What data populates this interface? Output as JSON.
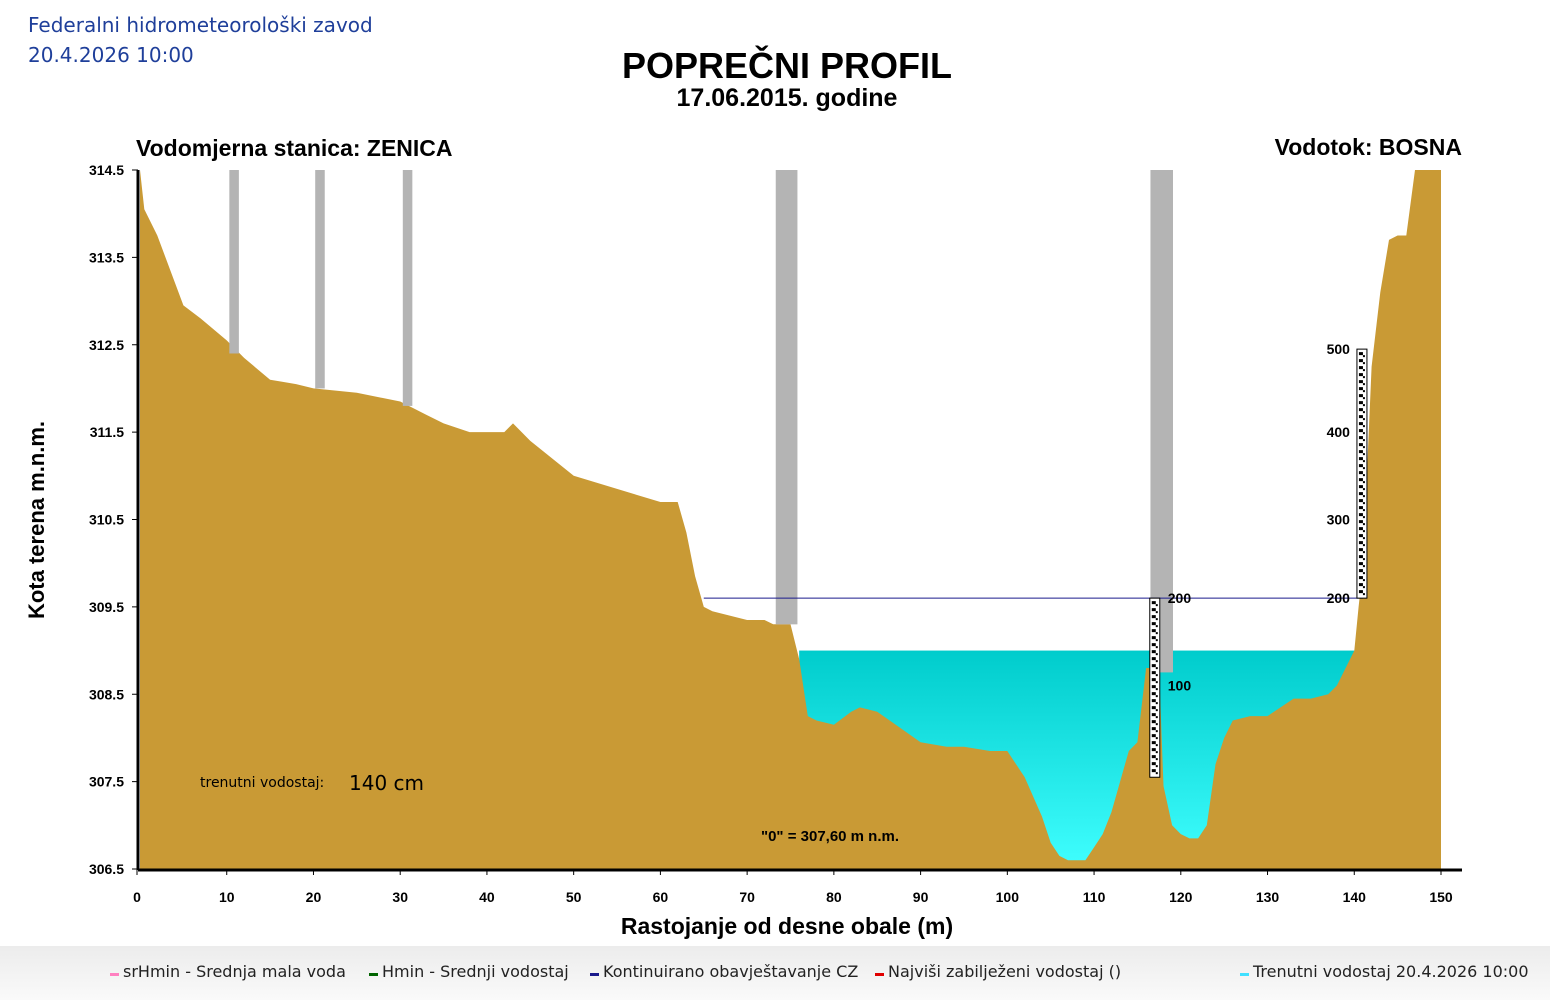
{
  "header": {
    "organization": "Federalni hidrometeorološki zavod",
    "datetime": "20.4.2026 10:00"
  },
  "chart_data": {
    "type": "area",
    "title": "POPREČNI PROFIL",
    "subtitle": "17.06.2015. godine",
    "station_label": "Vodomjerna stanica: ZENICA",
    "river_label": "Vodotok: BOSNA",
    "xlabel": "Rastojanje od desne obale (m)",
    "ylabel": "Kota terena m.n.m.",
    "xlim": [
      0,
      150
    ],
    "ylim": [
      306.5,
      314.5
    ],
    "x_ticks": [
      "0",
      "10",
      "20",
      "30",
      "40",
      "50",
      "60",
      "70",
      "80",
      "90",
      "100",
      "110",
      "120",
      "130",
      "140",
      "150"
    ],
    "y_ticks": [
      "306.5",
      "307.5",
      "308.5",
      "309.5",
      "310.5",
      "311.5",
      "312.5",
      "313.5",
      "314.5"
    ],
    "terrain": {
      "x": [
        0,
        0.5,
        2,
        5,
        7,
        10,
        12,
        15,
        18,
        20,
        25,
        30,
        33,
        35,
        38,
        40,
        42,
        43,
        45,
        50,
        55,
        60,
        62,
        63,
        64,
        65,
        66,
        70,
        72,
        73,
        75,
        76,
        77,
        78,
        80,
        82,
        83,
        85,
        90,
        93,
        95,
        98,
        100,
        102,
        104,
        105,
        106,
        107,
        108,
        109,
        110,
        111,
        112,
        114,
        115,
        116,
        116.5,
        117.5,
        118,
        119,
        120,
        121,
        122,
        123,
        124,
        125,
        126,
        128,
        130,
        133,
        135,
        137,
        138,
        140,
        140.5,
        141,
        142,
        143,
        144,
        145,
        146,
        147,
        148,
        149,
        150
      ],
      "y": [
        314.5,
        314.05,
        313.75,
        312.95,
        312.8,
        312.55,
        312.35,
        312.1,
        312.05,
        312.0,
        311.95,
        311.85,
        311.7,
        311.6,
        311.5,
        311.5,
        311.5,
        311.6,
        311.4,
        311.0,
        310.85,
        310.7,
        310.7,
        310.35,
        309.85,
        309.5,
        309.45,
        309.35,
        309.35,
        309.3,
        309.3,
        308.9,
        308.25,
        308.2,
        308.15,
        308.3,
        308.35,
        308.3,
        307.95,
        307.9,
        307.9,
        307.85,
        307.85,
        307.55,
        307.1,
        306.8,
        306.65,
        306.6,
        306.6,
        306.6,
        306.75,
        306.9,
        307.15,
        307.85,
        307.95,
        308.8,
        308.8,
        308.8,
        307.45,
        307.0,
        306.9,
        306.85,
        306.85,
        307.0,
        307.7,
        308.0,
        308.2,
        308.25,
        308.25,
        308.45,
        308.45,
        308.5,
        308.6,
        309.0,
        309.5,
        309.95,
        312.25,
        313.1,
        313.7,
        313.75,
        313.75,
        314.5,
        314.5,
        314.5,
        314.5
      ]
    },
    "water_level_m": 309.0,
    "hmin_line_m": 309.6,
    "zero_label": "\"0\" = 307,60 m n.m.",
    "current_level": {
      "label": "trenutni vodostaj:",
      "value": "140 cm"
    },
    "staff_gauges": [
      {
        "x": 117,
        "labels": [
          {
            "text": "200",
            "y": 309.6
          },
          {
            "text": "100",
            "y": 308.6
          }
        ]
      },
      {
        "x": 141,
        "labels": [
          {
            "text": "500",
            "y": 312.45
          },
          {
            "text": "400",
            "y": 311.5
          },
          {
            "text": "300",
            "y": 310.5
          },
          {
            "text": "200",
            "y": 309.6
          }
        ]
      }
    ],
    "bridge_pillars": [
      {
        "x1": 10.3,
        "x2": 11.4,
        "top": 314.5,
        "bottom": 312.4
      },
      {
        "x1": 20.2,
        "x2": 21.3,
        "top": 314.5,
        "bottom": 312.0
      },
      {
        "x1": 30.3,
        "x2": 31.4,
        "top": 314.5,
        "bottom": 311.8
      },
      {
        "x1": 73.3,
        "x2": 75.8,
        "top": 314.55,
        "bottom": 309.3
      },
      {
        "x1": 116.5,
        "x2": 119.1,
        "top": 314.55,
        "bottom": 308.75
      }
    ],
    "colors": {
      "terrain": "#c99a35",
      "water_top": "#00cccc",
      "water_bottom": "#40ffff",
      "pillar": "#b4b4b4",
      "hmin_line": "#1a1a8c"
    }
  },
  "legend": [
    {
      "label": "srHmin - Srednja mala voda",
      "color": "#ff80c0"
    },
    {
      "label": "Hmin - Srednji vodostaj",
      "color": "#006400"
    },
    {
      "label": "Kontinuirano obavještavanje CZ",
      "color": "#1a1a8c"
    },
    {
      "label": "Najviši zabilježeni vodostaj ()",
      "color": "#e00000"
    },
    {
      "label": "Trenutni vodostaj 20.4.2026 10:00",
      "color": "#40e0ff"
    }
  ]
}
